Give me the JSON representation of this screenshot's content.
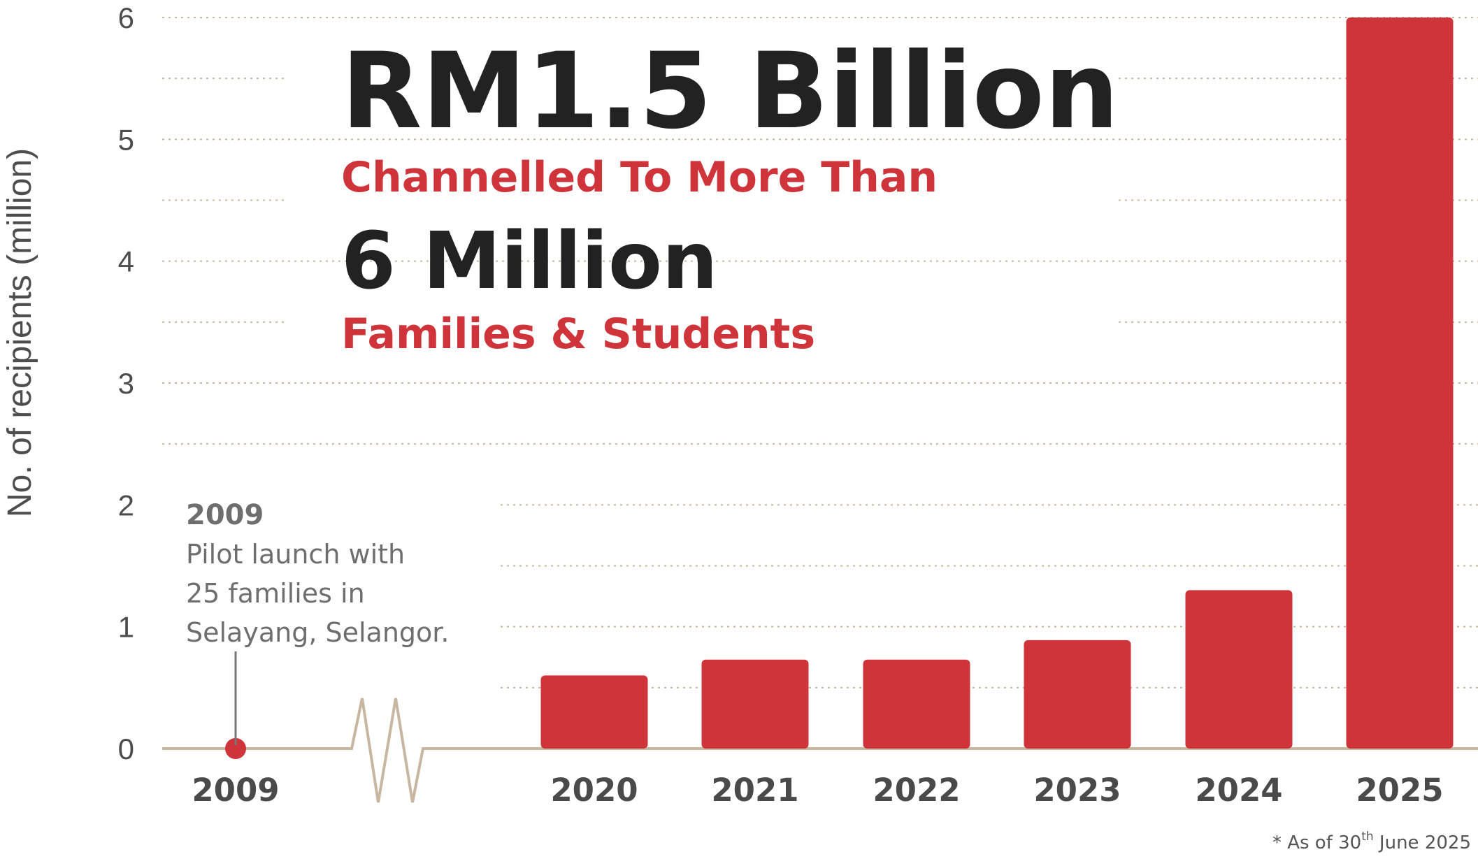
{
  "headline": {
    "amount": "RM1.5 Billion",
    "sub1": "Channelled To More Than",
    "count": "6 Million",
    "sub2": "Families & Students"
  },
  "annotation": {
    "year": "2009",
    "lines": [
      "Pilot launch with",
      "25 families in",
      "Selayang, Selangor."
    ]
  },
  "footnote": {
    "prefix": "* As of 30",
    "sup": "th",
    "suffix": " June 2025"
  },
  "colors": {
    "bar": "#cf343a",
    "axis": "#c8b7a0",
    "grid": "#c8b7a0",
    "text_dark": "#222222",
    "accent": "#cf343a"
  },
  "chart_data": {
    "type": "bar",
    "categories": [
      "2009",
      "2020",
      "2021",
      "2022",
      "2023",
      "2024",
      "2025"
    ],
    "values": [
      2.5e-05,
      0.6,
      0.73,
      0.73,
      0.89,
      1.3,
      6.0
    ],
    "ylabel": "No. of recipients  (million)",
    "xlabel": "",
    "ylim": [
      0,
      6
    ],
    "yticks": [
      "0",
      "1",
      "2",
      "3",
      "4",
      "5",
      "6"
    ],
    "grid": "dotted horizontal lines every 0.5",
    "axis_break": "between 2009 and 2020",
    "first_point_style": "dot"
  }
}
